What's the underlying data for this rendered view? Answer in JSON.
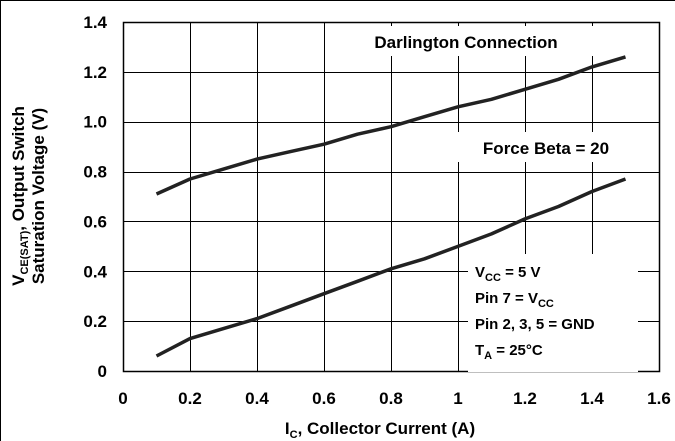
{
  "chart_data": {
    "type": "line",
    "xlabel": {
      "main": "I",
      "sub": "C",
      "rest": ", Collector Current (A)"
    },
    "ylabel": {
      "line1": {
        "pre": "V",
        "sub": "CE(SAT)",
        "rest": ", Output Switch"
      },
      "line2": "Saturation Voltage (V)"
    },
    "xlim": [
      0,
      1.6
    ],
    "ylim": [
      0,
      1.4
    ],
    "x_ticks": [
      0,
      0.2,
      0.4,
      0.6,
      0.8,
      1,
      1.2,
      1.4,
      1.6
    ],
    "x_tick_labels": [
      "0",
      "0.2",
      "0.4",
      "0.6",
      "0.8",
      "1",
      "1.2",
      "1.4",
      "1.6"
    ],
    "y_ticks": [
      0,
      0.2,
      0.4,
      0.6,
      0.8,
      1.0,
      1.2,
      1.4
    ],
    "y_tick_labels": [
      "0",
      "0.2",
      "0.4",
      "0.6",
      "0.8",
      "1.0",
      "1.2",
      "1.4"
    ],
    "grid": true,
    "series": [
      {
        "name": "Darlington Connection",
        "x": [
          0.1,
          0.2,
          0.3,
          0.4,
          0.5,
          0.6,
          0.7,
          0.8,
          0.9,
          1.0,
          1.1,
          1.2,
          1.3,
          1.4,
          1.5
        ],
        "y": [
          0.71,
          0.77,
          0.81,
          0.85,
          0.88,
          0.91,
          0.95,
          0.98,
          1.02,
          1.06,
          1.09,
          1.13,
          1.17,
          1.22,
          1.26
        ]
      },
      {
        "name": "Force Beta = 20",
        "x": [
          0.1,
          0.2,
          0.3,
          0.4,
          0.5,
          0.6,
          0.7,
          0.8,
          0.9,
          1.0,
          1.1,
          1.2,
          1.3,
          1.4,
          1.5
        ],
        "y": [
          0.06,
          0.13,
          0.17,
          0.21,
          0.26,
          0.31,
          0.36,
          0.41,
          0.45,
          0.5,
          0.55,
          0.61,
          0.66,
          0.72,
          0.77
        ]
      }
    ],
    "annotations": {
      "darlington": "Darlington Connection",
      "force_beta": "Force Beta = 20"
    },
    "conditions": [
      {
        "pre": "V",
        "sub": "CC",
        "rest": " = 5 V"
      },
      {
        "pre": "Pin 7 = V",
        "sub": "CC",
        "rest": ""
      },
      {
        "pre": "Pin 2, 3, 5 = GND",
        "sub": "",
        "rest": ""
      },
      {
        "pre": "T",
        "sub": "A",
        "rest": " = 25°C"
      }
    ]
  }
}
